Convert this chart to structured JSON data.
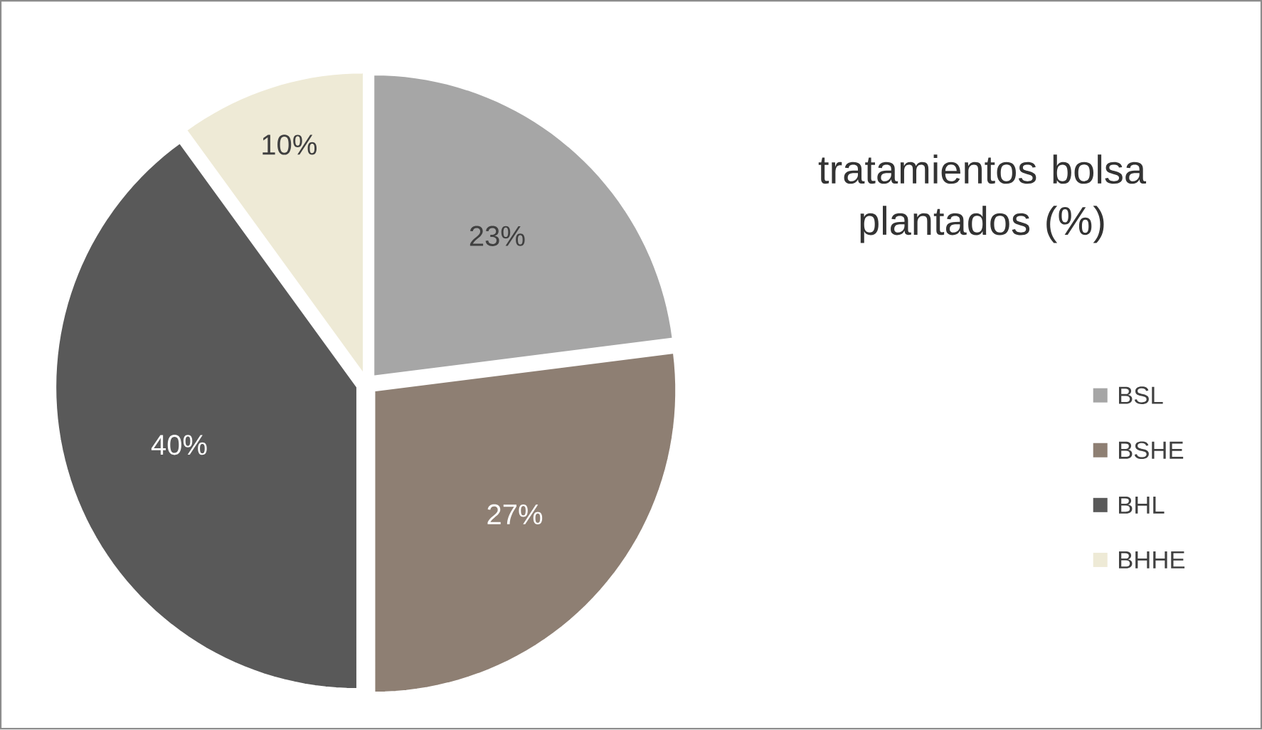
{
  "chart_data": {
    "type": "pie",
    "title": "tratamientos bolsa plantados (%)",
    "categories": [
      "BSL",
      "BSHE",
      "BHL",
      "BHHE"
    ],
    "values": [
      23,
      27,
      40,
      10
    ],
    "colors": [
      "#a6a6a6",
      "#8e7f73",
      "#595959",
      "#eeead6"
    ],
    "value_labels": [
      "23%",
      "27%",
      "40%",
      "10%"
    ],
    "legend": "right"
  }
}
